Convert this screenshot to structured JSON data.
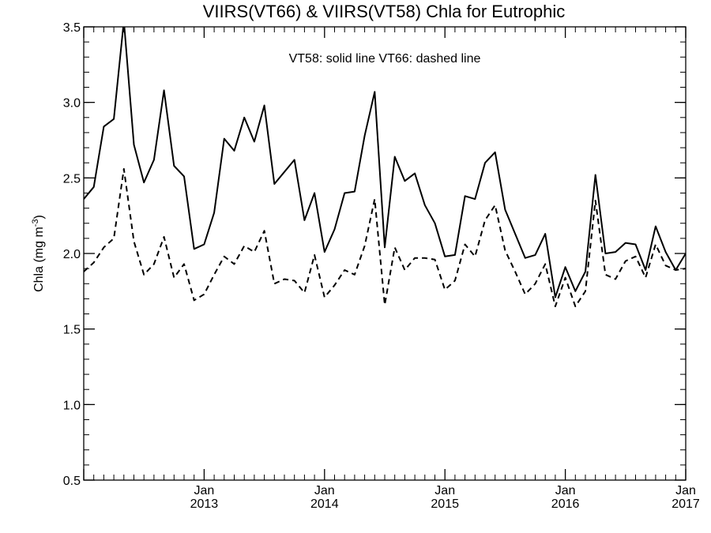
{
  "chart_data": {
    "type": "line",
    "title": "VIIRS(VT66) & VIIRS(VT58)  Chla for Eutrophic",
    "annotation": "VT58: solid line   VT66: dashed line",
    "ylabel": "Chla (mg m",
    "ylabel_superscript": "-3",
    "ylabel_close": ")",
    "xlabel": "",
    "ylim": [
      0.5,
      3.5
    ],
    "xlim": [
      "2012-01",
      "2017-01"
    ],
    "yticks": [
      "0.5",
      "1.0",
      "1.5",
      "2.0",
      "2.5",
      "3.0",
      "3.5"
    ],
    "xticks": [
      {
        "month": "Jan",
        "year": "2013",
        "at": "2013-01"
      },
      {
        "month": "Jan",
        "year": "2014",
        "at": "2014-01"
      },
      {
        "month": "Jan",
        "year": "2015",
        "at": "2015-01"
      },
      {
        "month": "Jan",
        "year": "2016",
        "at": "2016-01"
      },
      {
        "month": "Jan",
        "year": "2017",
        "at": "2017-01"
      }
    ],
    "grid": false,
    "x": [
      "2012-01",
      "2012-02",
      "2012-03",
      "2012-04",
      "2012-05",
      "2012-06",
      "2012-07",
      "2012-08",
      "2012-09",
      "2012-10",
      "2012-11",
      "2012-12",
      "2013-01",
      "2013-02",
      "2013-03",
      "2013-04",
      "2013-05",
      "2013-06",
      "2013-07",
      "2013-08",
      "2013-09",
      "2013-10",
      "2013-11",
      "2013-12",
      "2014-01",
      "2014-02",
      "2014-03",
      "2014-04",
      "2014-05",
      "2014-06",
      "2014-07",
      "2014-08",
      "2014-09",
      "2014-10",
      "2014-11",
      "2014-12",
      "2015-01",
      "2015-02",
      "2015-03",
      "2015-04",
      "2015-05",
      "2015-06",
      "2015-07",
      "2015-08",
      "2015-09",
      "2015-10",
      "2015-11",
      "2015-12",
      "2016-01",
      "2016-02",
      "2016-03",
      "2016-04",
      "2016-05",
      "2016-06",
      "2016-07",
      "2016-08",
      "2016-09",
      "2016-10",
      "2016-11",
      "2016-12",
      "2017-01"
    ],
    "series": [
      {
        "line_style": "solid",
        "values": [
          2.36,
          2.44,
          2.84,
          2.89,
          3.54,
          2.72,
          2.47,
          2.62,
          3.08,
          2.58,
          2.51,
          2.03,
          2.06,
          2.27,
          2.76,
          2.68,
          2.9,
          2.74,
          2.98,
          2.46,
          2.54,
          2.62,
          2.22,
          2.4,
          2.01,
          2.16,
          2.4,
          2.41,
          2.78,
          3.07,
          2.04,
          2.64,
          2.48,
          2.53,
          2.32,
          2.2,
          1.98,
          1.99,
          2.38,
          2.36,
          2.6,
          2.67,
          2.29,
          2.13,
          1.97,
          1.99,
          2.13,
          1.71,
          1.91,
          1.75,
          1.88,
          2.52,
          2.0,
          2.01,
          2.07,
          2.06,
          1.89,
          2.18,
          2.01,
          1.89,
          2.0
        ]
      },
      {
        "line_style": "dashed",
        "values": [
          1.88,
          1.94,
          2.04,
          2.1,
          2.56,
          2.08,
          1.86,
          1.93,
          2.11,
          1.84,
          1.93,
          1.69,
          1.73,
          1.86,
          1.98,
          1.93,
          2.05,
          2.01,
          2.15,
          1.8,
          1.83,
          1.82,
          1.74,
          1.99,
          1.71,
          1.79,
          1.89,
          1.86,
          2.05,
          2.36,
          1.66,
          2.04,
          1.89,
          1.97,
          1.97,
          1.96,
          1.76,
          1.82,
          2.06,
          1.98,
          2.22,
          2.32,
          2.02,
          1.88,
          1.73,
          1.8,
          1.93,
          1.65,
          1.84,
          1.65,
          1.75,
          2.35,
          1.86,
          1.83,
          1.95,
          1.98,
          1.84,
          2.06,
          1.92,
          1.89,
          1.9
        ]
      }
    ]
  }
}
